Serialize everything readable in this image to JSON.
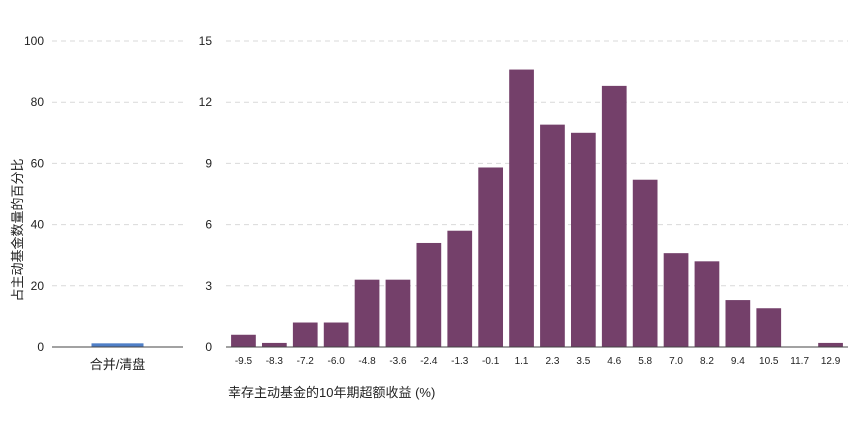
{
  "chart_data": [
    {
      "type": "bar",
      "ylabel": "占主动基金数量的百分比",
      "ylim": [
        0,
        100
      ],
      "yticks": [
        0,
        20,
        40,
        60,
        80,
        100
      ],
      "categories": [
        "合并/清盘"
      ],
      "values": [
        1.2
      ],
      "colors": {
        "bar": "#4f7fc7",
        "grid": "#d9d9d9"
      }
    },
    {
      "type": "bar",
      "xlabel": "幸存主动基金的10年期超额收益 (%)",
      "ylim": [
        0,
        15
      ],
      "yticks": [
        0,
        3,
        6,
        9,
        12,
        15
      ],
      "categories": [
        "-9.5",
        "-8.3",
        "-7.2",
        "-6.0",
        "-4.8",
        "-3.6",
        "-2.4",
        "-1.3",
        "-0.1",
        "1.1",
        "2.3",
        "3.5",
        "4.6",
        "5.8",
        "7.0",
        "8.2",
        "9.4",
        "10.5",
        "11.7",
        "12.9"
      ],
      "values": [
        0.6,
        0.2,
        1.2,
        1.2,
        3.3,
        3.3,
        5.1,
        5.7,
        8.8,
        13.6,
        10.9,
        10.5,
        12.8,
        8.2,
        4.6,
        4.2,
        2.3,
        1.9,
        0.0,
        0.2
      ],
      "colors": {
        "bar": "#74406a",
        "grid": "#d9d9d9"
      }
    }
  ]
}
